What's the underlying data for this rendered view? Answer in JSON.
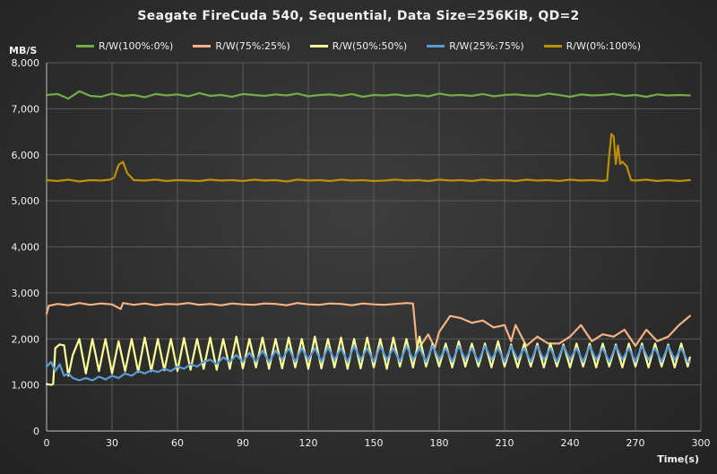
{
  "chart_data": {
    "type": "line",
    "title": "Seagate FireCuda 540, Sequential, Data Size=256KiB, QD=2",
    "xlabel": "Time(s)",
    "ylabel": "MB/S",
    "xlim": [
      0,
      300
    ],
    "ylim": [
      0,
      8000
    ],
    "x_ticks": [
      0,
      30,
      60,
      90,
      120,
      150,
      180,
      210,
      240,
      270,
      300
    ],
    "y_ticks": [
      0,
      1000,
      2000,
      3000,
      4000,
      5000,
      6000,
      7000,
      8000
    ],
    "y_tick_labels": [
      "0",
      "1,000",
      "2,000",
      "3,000",
      "4,000",
      "5,000",
      "6,000",
      "7,000",
      "8,000"
    ],
    "grid": true,
    "legend_position": "top",
    "series": [
      {
        "name": "R/W(100%:0%)",
        "color": "#70ad47",
        "x": [
          0,
          5,
          10,
          15,
          20,
          25,
          30,
          35,
          40,
          45,
          50,
          55,
          60,
          65,
          70,
          75,
          80,
          85,
          90,
          95,
          100,
          105,
          110,
          115,
          120,
          125,
          130,
          135,
          140,
          145,
          150,
          155,
          160,
          165,
          170,
          175,
          180,
          185,
          190,
          195,
          200,
          205,
          210,
          215,
          220,
          225,
          230,
          235,
          240,
          245,
          250,
          255,
          260,
          265,
          270,
          275,
          280,
          285,
          290,
          295
        ],
        "values": [
          7300,
          7320,
          7220,
          7380,
          7280,
          7260,
          7330,
          7280,
          7300,
          7250,
          7320,
          7290,
          7310,
          7270,
          7340,
          7280,
          7300,
          7260,
          7320,
          7300,
          7280,
          7310,
          7290,
          7330,
          7270,
          7300,
          7310,
          7280,
          7320,
          7260,
          7300,
          7290,
          7310,
          7280,
          7300,
          7270,
          7330,
          7290,
          7300,
          7280,
          7320,
          7270,
          7300,
          7310,
          7290,
          7280,
          7330,
          7300,
          7260,
          7310,
          7290,
          7300,
          7320,
          7280,
          7300,
          7260,
          7310,
          7290,
          7300,
          7290
        ]
      },
      {
        "name": "R/W(75%:25%)",
        "color": "#f4b183",
        "x": [
          0,
          1,
          5,
          10,
          15,
          20,
          25,
          30,
          34,
          35,
          40,
          45,
          50,
          55,
          60,
          65,
          70,
          75,
          80,
          85,
          90,
          95,
          100,
          105,
          110,
          115,
          120,
          125,
          130,
          135,
          140,
          145,
          150,
          155,
          160,
          165,
          168,
          170,
          175,
          178,
          180,
          185,
          190,
          195,
          200,
          205,
          210,
          213,
          215,
          220,
          225,
          230,
          235,
          240,
          245,
          250,
          255,
          260,
          265,
          270,
          275,
          280,
          285,
          290,
          295
        ],
        "values": [
          2550,
          2720,
          2760,
          2730,
          2780,
          2740,
          2770,
          2750,
          2650,
          2780,
          2740,
          2770,
          2730,
          2760,
          2750,
          2780,
          2740,
          2760,
          2730,
          2770,
          2750,
          2740,
          2770,
          2760,
          2730,
          2780,
          2750,
          2740,
          2770,
          2760,
          2730,
          2770,
          2750,
          2740,
          2760,
          2780,
          2770,
          1750,
          2100,
          1800,
          2150,
          2500,
          2450,
          2350,
          2400,
          2250,
          2300,
          1950,
          2300,
          1850,
          2050,
          1900,
          1900,
          2050,
          2300,
          1950,
          2100,
          2050,
          2200,
          1850,
          2200,
          1950,
          2050,
          2300,
          2500
        ]
      },
      {
        "name": "R/W(50%:50%)",
        "color": "#ffff99",
        "x": [
          0,
          2,
          3,
          4,
          6,
          8,
          10,
          12,
          15,
          18,
          21,
          24,
          27,
          30,
          33,
          36,
          39,
          42,
          45,
          48,
          51,
          54,
          57,
          60,
          63,
          66,
          69,
          72,
          75,
          78,
          81,
          84,
          87,
          90,
          93,
          96,
          99,
          102,
          105,
          108,
          111,
          114,
          117,
          120,
          123,
          126,
          129,
          132,
          135,
          138,
          141,
          144,
          147,
          150,
          153,
          156,
          159,
          162,
          165,
          168,
          171,
          174,
          177,
          180,
          183,
          186,
          189,
          192,
          195,
          198,
          201,
          204,
          207,
          210,
          213,
          216,
          219,
          222,
          225,
          228,
          231,
          234,
          237,
          240,
          243,
          246,
          249,
          252,
          255,
          258,
          261,
          264,
          267,
          270,
          273,
          276,
          279,
          282,
          285,
          288,
          291,
          294,
          295
        ],
        "values": [
          1020,
          1000,
          1020,
          1800,
          1880,
          1860,
          1200,
          1650,
          2000,
          1250,
          2000,
          1300,
          2000,
          1250,
          1950,
          1300,
          2000,
          1280,
          2030,
          1300,
          2000,
          1320,
          2000,
          1300,
          2020,
          1330,
          2000,
          1350,
          2030,
          1330,
          2000,
          1350,
          2050,
          1360,
          2000,
          1380,
          2030,
          1350,
          2000,
          1360,
          2030,
          1380,
          2000,
          1350,
          2050,
          1360,
          2000,
          1380,
          2030,
          1350,
          2000,
          1360,
          2030,
          1380,
          2000,
          1350,
          2030,
          1400,
          2000,
          1380,
          2050,
          1400,
          1900,
          1400,
          1900,
          1380,
          1950,
          1400,
          1900,
          1400,
          1900,
          1380,
          1950,
          1400,
          1880,
          1380,
          1900,
          1400,
          1900,
          1380,
          1900,
          1400,
          1880,
          1380,
          1900,
          1400,
          1900,
          1380,
          1900,
          1400,
          1880,
          1380,
          1900,
          1400,
          1900,
          1380,
          1900,
          1400,
          1880,
          1380,
          1900,
          1400,
          1600
        ]
      },
      {
        "name": "R/W(25%:75%)",
        "color": "#5b9bd5",
        "x": [
          0,
          2,
          4,
          6,
          8,
          10,
          12,
          15,
          18,
          21,
          24,
          27,
          30,
          33,
          36,
          39,
          42,
          45,
          48,
          51,
          54,
          57,
          60,
          63,
          66,
          69,
          72,
          75,
          78,
          81,
          84,
          87,
          90,
          93,
          96,
          99,
          102,
          105,
          108,
          111,
          114,
          117,
          120,
          123,
          126,
          129,
          132,
          135,
          138,
          141,
          144,
          147,
          150,
          153,
          156,
          159,
          162,
          165,
          168,
          171,
          174,
          177,
          180,
          183,
          186,
          189,
          192,
          195,
          198,
          201,
          204,
          207,
          210,
          213,
          216,
          219,
          222,
          225,
          228,
          231,
          234,
          237,
          240,
          243,
          246,
          249,
          252,
          255,
          258,
          261,
          264,
          267,
          270,
          273,
          276,
          279,
          282,
          285,
          288,
          291,
          294,
          295
        ],
        "values": [
          1400,
          1500,
          1300,
          1450,
          1200,
          1250,
          1150,
          1100,
          1150,
          1100,
          1180,
          1120,
          1200,
          1150,
          1250,
          1200,
          1300,
          1250,
          1320,
          1280,
          1350,
          1300,
          1400,
          1350,
          1450,
          1400,
          1500,
          1550,
          1450,
          1600,
          1500,
          1650,
          1500,
          1700,
          1500,
          1750,
          1500,
          1750,
          1550,
          1800,
          1500,
          1800,
          1550,
          1800,
          1500,
          1820,
          1550,
          1800,
          1500,
          1850,
          1550,
          1800,
          1500,
          1850,
          1550,
          1800,
          1500,
          1850,
          1550,
          1800,
          1500,
          1850,
          1550,
          1800,
          1500,
          1850,
          1550,
          1800,
          1500,
          1850,
          1550,
          1800,
          1500,
          1850,
          1550,
          1800,
          1500,
          1850,
          1550,
          1800,
          1500,
          1850,
          1550,
          1800,
          1500,
          1850,
          1550,
          1800,
          1500,
          1850,
          1550,
          1800,
          1500,
          1850,
          1550,
          1800,
          1500,
          1850,
          1550,
          1800,
          1500,
          1500
        ]
      },
      {
        "name": "R/W(0%:100%)",
        "color": "#bf8f00",
        "x": [
          0,
          5,
          10,
          15,
          20,
          25,
          29,
          31,
          33,
          35,
          37,
          40,
          45,
          50,
          55,
          60,
          65,
          70,
          75,
          80,
          85,
          90,
          95,
          100,
          105,
          110,
          115,
          120,
          125,
          130,
          135,
          140,
          145,
          150,
          155,
          160,
          165,
          170,
          175,
          180,
          185,
          190,
          195,
          200,
          205,
          210,
          215,
          220,
          225,
          230,
          235,
          240,
          245,
          250,
          255,
          257,
          258,
          259,
          260,
          261,
          262,
          263,
          264,
          266,
          268,
          270,
          275,
          280,
          285,
          290,
          295
        ],
        "values": [
          5450,
          5430,
          5460,
          5420,
          5450,
          5440,
          5460,
          5500,
          5780,
          5850,
          5600,
          5450,
          5440,
          5460,
          5430,
          5450,
          5440,
          5430,
          5460,
          5440,
          5450,
          5430,
          5460,
          5440,
          5450,
          5420,
          5460,
          5440,
          5450,
          5430,
          5460,
          5440,
          5450,
          5430,
          5440,
          5460,
          5440,
          5450,
          5430,
          5460,
          5440,
          5450,
          5430,
          5460,
          5440,
          5450,
          5430,
          5460,
          5440,
          5450,
          5430,
          5460,
          5440,
          5450,
          5430,
          5450,
          6000,
          6450,
          6400,
          5800,
          6200,
          5800,
          5850,
          5750,
          5450,
          5440,
          5460,
          5430,
          5450,
          5430,
          5450
        ]
      }
    ]
  }
}
